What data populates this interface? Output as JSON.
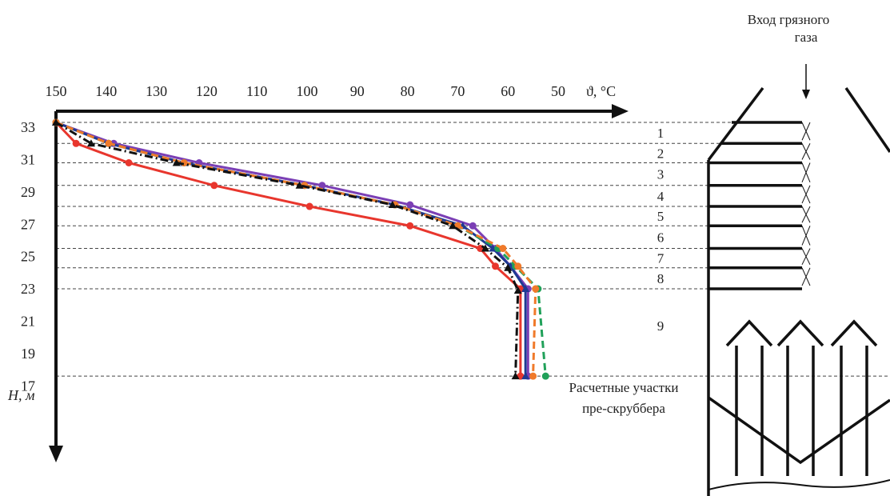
{
  "chart_data": {
    "type": "line",
    "x_axis": {
      "label": "ϑ, °C",
      "ticks": [
        150,
        140,
        130,
        120,
        110,
        100,
        90,
        80,
        70,
        60,
        50
      ],
      "range": [
        150,
        45
      ],
      "position": "top"
    },
    "y_axis": {
      "label": "H, м",
      "ticks": [
        33,
        31,
        29,
        27,
        25,
        23,
        21,
        19,
        17
      ],
      "range": [
        33.4,
        15.0
      ],
      "direction": "down"
    },
    "series": [
      {
        "color": "#e8362d",
        "style": "solid",
        "marker": "circle",
        "points": [
          [
            150.0,
            33.3
          ],
          [
            146.0,
            32.0
          ],
          [
            135.5,
            30.8
          ],
          [
            118.5,
            29.4
          ],
          [
            99.5,
            28.1
          ],
          [
            79.5,
            26.9
          ],
          [
            65.5,
            25.5
          ],
          [
            62.5,
            24.4
          ],
          [
            57.5,
            23.0
          ],
          [
            57.5,
            17.6
          ]
        ]
      },
      {
        "color": "#7b3fb5",
        "style": "solid",
        "marker": "circle",
        "points": [
          [
            150.0,
            33.3
          ],
          [
            138.5,
            32.0
          ],
          [
            121.5,
            30.8
          ],
          [
            97.0,
            29.4
          ],
          [
            79.5,
            28.2
          ],
          [
            67.0,
            26.9
          ],
          [
            62.5,
            25.5
          ],
          [
            59.5,
            24.4
          ],
          [
            56.0,
            23.0
          ],
          [
            56.0,
            17.6
          ]
        ]
      },
      {
        "color": "#1f3a93",
        "style": "solid",
        "marker": "triangle",
        "points": [
          [
            150.0,
            33.3
          ],
          [
            139.5,
            32.0
          ],
          [
            124.5,
            30.8
          ],
          [
            100.5,
            29.4
          ],
          [
            82.5,
            28.2
          ],
          [
            69.0,
            26.9
          ],
          [
            63.0,
            25.5
          ],
          [
            59.5,
            24.4
          ],
          [
            56.5,
            23.0
          ],
          [
            56.5,
            17.6
          ]
        ]
      },
      {
        "color": "#21a15a",
        "style": "dashed",
        "marker": "circle",
        "points": [
          [
            150.0,
            33.3
          ],
          [
            139.5,
            32.0
          ],
          [
            124.5,
            30.8
          ],
          [
            100.5,
            29.4
          ],
          [
            82.5,
            28.2
          ],
          [
            70.0,
            26.9
          ],
          [
            62.0,
            25.5
          ],
          [
            58.5,
            24.4
          ],
          [
            54.0,
            23.0
          ],
          [
            52.5,
            17.6
          ]
        ]
      },
      {
        "color": "#f07a2a",
        "style": "dashed",
        "marker": "circle",
        "points": [
          [
            150.0,
            33.3
          ],
          [
            139.5,
            32.0
          ],
          [
            124.5,
            30.8
          ],
          [
            100.5,
            29.4
          ],
          [
            82.5,
            28.2
          ],
          [
            70.0,
            26.9
          ],
          [
            61.0,
            25.5
          ],
          [
            58.0,
            24.4
          ],
          [
            54.5,
            23.0
          ],
          [
            55.0,
            17.6
          ]
        ]
      },
      {
        "color": "#111111",
        "style": "dashdot",
        "marker": "triangle",
        "points": [
          [
            150.0,
            33.3
          ],
          [
            143.0,
            32.0
          ],
          [
            126.0,
            30.8
          ],
          [
            101.5,
            29.4
          ],
          [
            83.0,
            28.2
          ],
          [
            71.0,
            26.9
          ],
          [
            64.5,
            25.5
          ],
          [
            60.0,
            24.3
          ],
          [
            58.0,
            22.9
          ],
          [
            58.5,
            17.6
          ]
        ]
      }
    ],
    "grid": false,
    "section_levels": [
      33.3,
      32.0,
      30.8,
      29.4,
      28.1,
      26.9,
      25.5,
      24.3,
      23.0,
      17.6
    ],
    "section_labels": [
      "1",
      "2",
      "3",
      "4",
      "5",
      "6",
      "7",
      "8",
      "9"
    ],
    "annotations": {
      "inlet": [
        "Вход грязного",
        "газа"
      ],
      "sections": [
        "Расчетные участки",
        "пре-скруббера"
      ]
    }
  }
}
